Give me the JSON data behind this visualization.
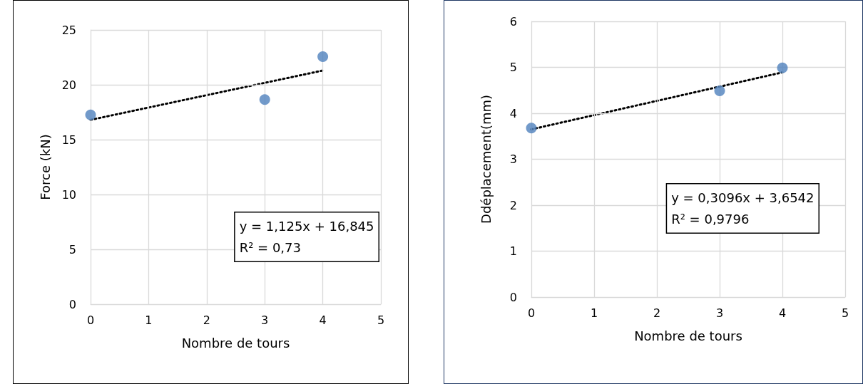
{
  "chart_data": [
    {
      "type": "scatter",
      "xlabel": "Nombre de tours",
      "ylabel": "Force (kN)",
      "xlim": [
        0,
        5
      ],
      "xticks": [
        0,
        1,
        2,
        3,
        4,
        5
      ],
      "ylim": [
        0,
        25
      ],
      "yticks": [
        0,
        5,
        10,
        15,
        20,
        25
      ],
      "grid": true,
      "marker": "circle",
      "series": [
        {
          "color": "#4f81bd",
          "x": [
            0,
            3,
            4
          ],
          "values": [
            17.25,
            18.66,
            22.56
          ]
        },
        {
          "type": "line",
          "color": "#000000",
          "line_style": "dotted",
          "marker": "none",
          "x": [
            0,
            4
          ],
          "values": [
            16.8,
            21.3
          ]
        }
      ],
      "annotations": [
        "y = 1,125x + 16,845\nR² = 0,73"
      ]
    },
    {
      "type": "scatter",
      "xlabel": "Nombre de tours",
      "ylabel": "Ddéplacement(mm)",
      "xlim": [
        0,
        5
      ],
      "xticks": [
        0,
        1,
        2,
        3,
        4,
        5
      ],
      "ylim": [
        0,
        6
      ],
      "yticks": [
        0,
        1,
        2,
        3,
        4,
        5,
        6
      ],
      "grid": true,
      "marker": "circle",
      "series": [
        {
          "color": "#4f81bd",
          "x": [
            0,
            3,
            4
          ],
          "values": [
            3.68,
            4.49,
            4.99
          ]
        },
        {
          "type": "line",
          "color": "#000000",
          "line_style": "dotted",
          "marker": "none",
          "x": [
            0,
            4
          ],
          "values": [
            3.65,
            4.89
          ]
        }
      ],
      "annotations": [
        "y = 0,3096x + 3,6542\nR² = 0,9796"
      ]
    }
  ]
}
